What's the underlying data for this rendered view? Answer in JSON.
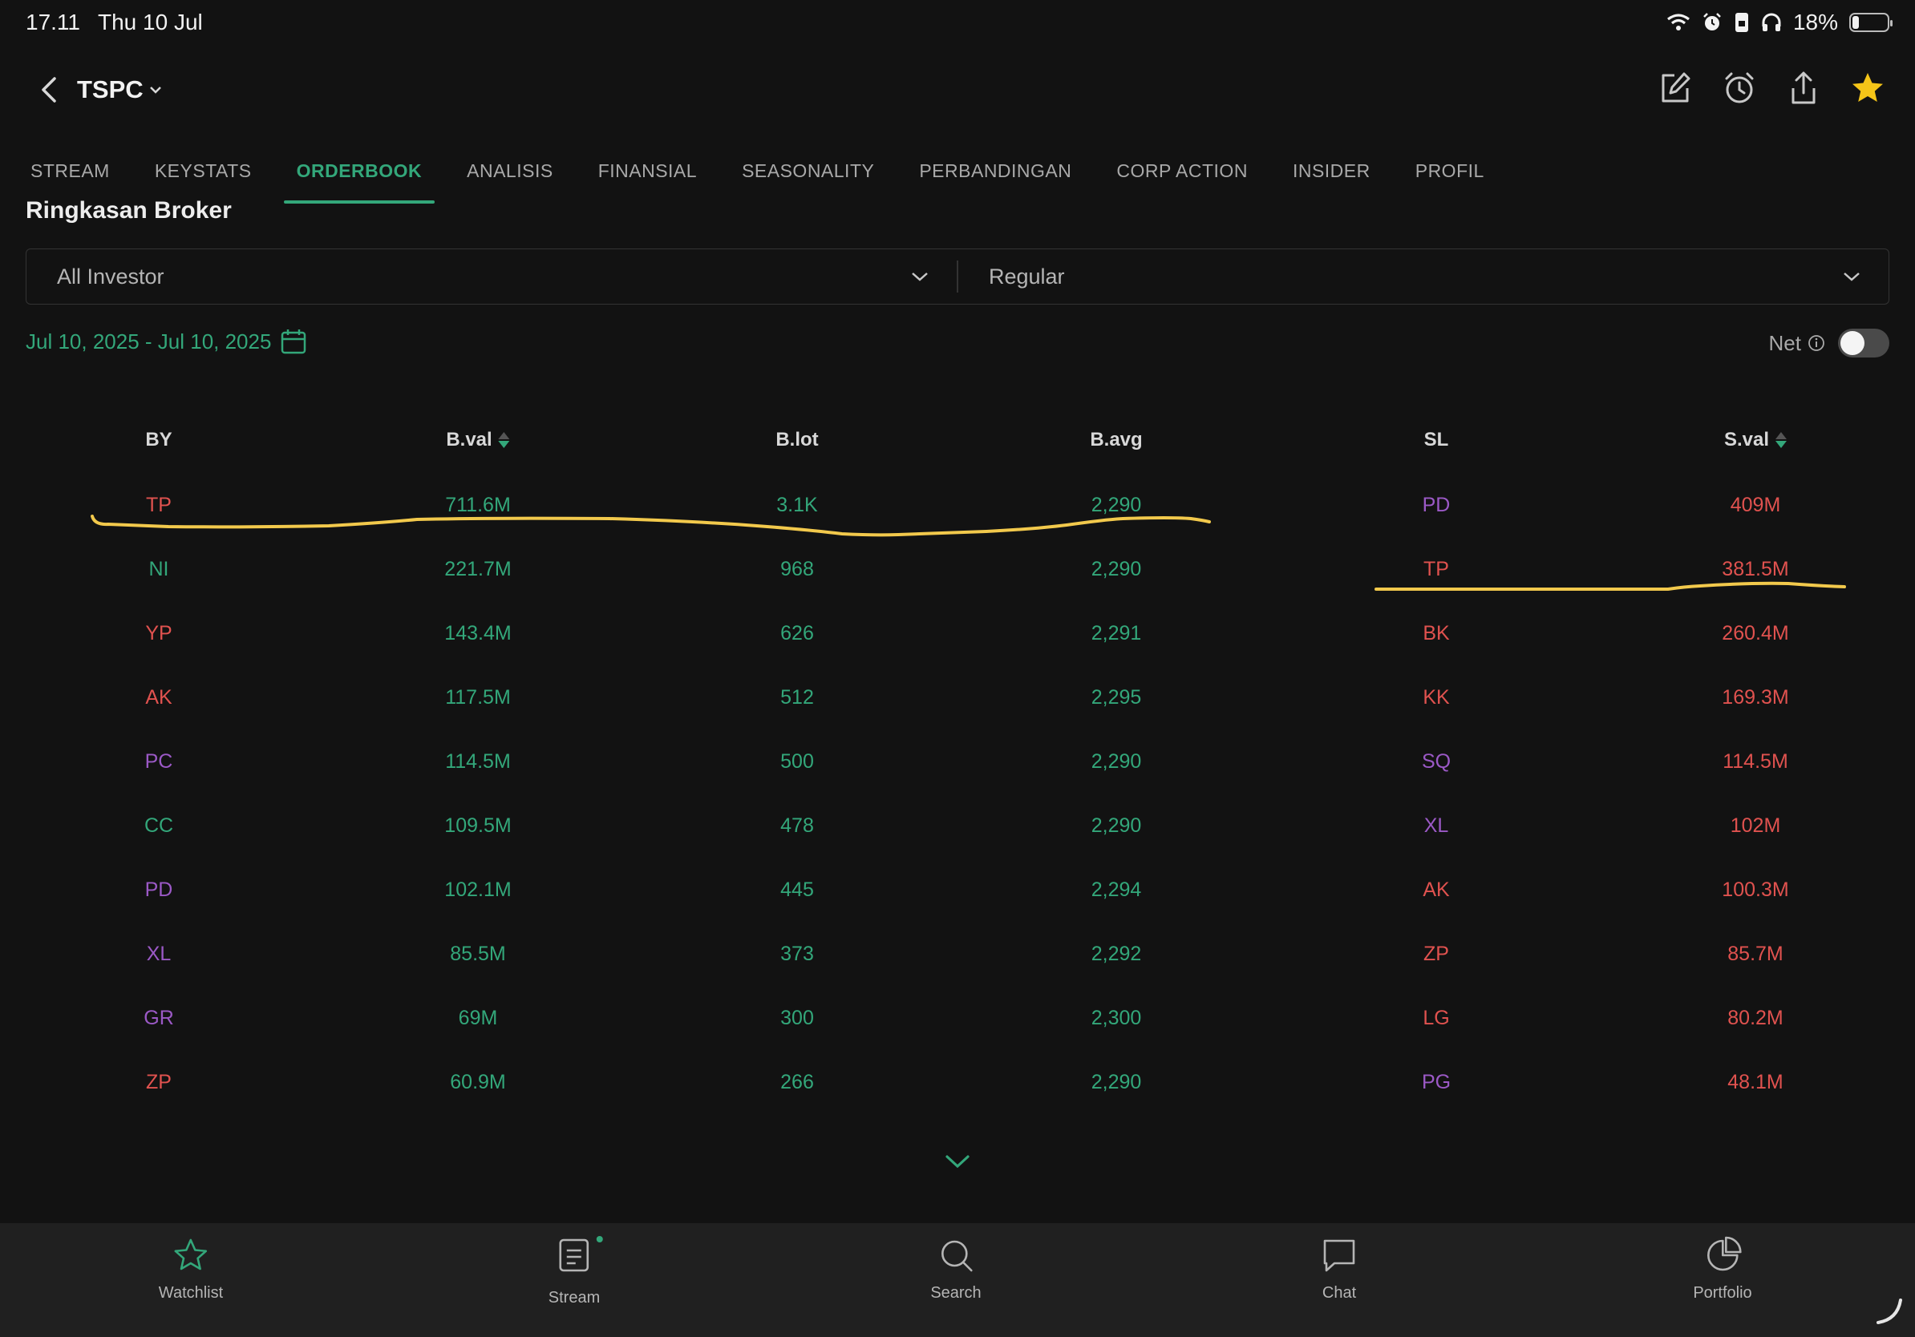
{
  "status_bar": {
    "time": "17.11",
    "date": "Thu 10 Jul",
    "battery": "18%",
    "battery_level": 0.18
  },
  "header": {
    "ticker": "TSPC"
  },
  "tabs": [
    {
      "label": "STREAM",
      "active": false
    },
    {
      "label": "KEYSTATS",
      "active": false
    },
    {
      "label": "ORDERBOOK",
      "active": true
    },
    {
      "label": "ANALISIS",
      "active": false
    },
    {
      "label": "FINANSIAL",
      "active": false
    },
    {
      "label": "SEASONALITY",
      "active": false
    },
    {
      "label": "PERBANDINGAN",
      "active": false
    },
    {
      "label": "CORP ACTION",
      "active": false
    },
    {
      "label": "INSIDER",
      "active": false
    },
    {
      "label": "PROFIL",
      "active": false
    }
  ],
  "section_title": "Ringkasan Broker",
  "filters": {
    "investor": "All Investor",
    "market": "Regular"
  },
  "date_range": "Jul 10, 2025 - Jul 10, 2025",
  "net": {
    "label": "Net",
    "enabled": false
  },
  "table": {
    "headers": {
      "by": "BY",
      "bval": "B.val",
      "blot": "B.lot",
      "bavg": "B.avg",
      "sl": "SL",
      "sval": "S.val"
    },
    "rows": [
      {
        "by": "TP",
        "by_color": "red",
        "bval": "711.6M",
        "blot": "3.1K",
        "bavg": "2,290",
        "sl": "PD",
        "sl_color": "purple",
        "sval": "409M"
      },
      {
        "by": "NI",
        "by_color": "green",
        "bval": "221.7M",
        "blot": "968",
        "bavg": "2,290",
        "sl": "TP",
        "sl_color": "red",
        "sval": "381.5M"
      },
      {
        "by": "YP",
        "by_color": "red",
        "bval": "143.4M",
        "blot": "626",
        "bavg": "2,291",
        "sl": "BK",
        "sl_color": "red",
        "sval": "260.4M"
      },
      {
        "by": "AK",
        "by_color": "red",
        "bval": "117.5M",
        "blot": "512",
        "bavg": "2,295",
        "sl": "KK",
        "sl_color": "red",
        "sval": "169.3M"
      },
      {
        "by": "PC",
        "by_color": "purple",
        "bval": "114.5M",
        "blot": "500",
        "bavg": "2,290",
        "sl": "SQ",
        "sl_color": "purple",
        "sval": "114.5M"
      },
      {
        "by": "CC",
        "by_color": "green",
        "bval": "109.5M",
        "blot": "478",
        "bavg": "2,290",
        "sl": "XL",
        "sl_color": "purple",
        "sval": "102M"
      },
      {
        "by": "PD",
        "by_color": "purple",
        "bval": "102.1M",
        "blot": "445",
        "bavg": "2,294",
        "sl": "AK",
        "sl_color": "red",
        "sval": "100.3M"
      },
      {
        "by": "XL",
        "by_color": "purple",
        "bval": "85.5M",
        "blot": "373",
        "bavg": "2,292",
        "sl": "ZP",
        "sl_color": "red",
        "sval": "85.7M"
      },
      {
        "by": "GR",
        "by_color": "purple",
        "bval": "69M",
        "blot": "300",
        "bavg": "2,300",
        "sl": "LG",
        "sl_color": "red",
        "sval": "80.2M"
      },
      {
        "by": "ZP",
        "by_color": "red",
        "bval": "60.9M",
        "blot": "266",
        "bavg": "2,290",
        "sl": "PG",
        "sl_color": "purple",
        "sval": "48.1M"
      }
    ]
  },
  "bottom_nav": [
    {
      "label": "Watchlist",
      "icon": "star-icon",
      "active": true
    },
    {
      "label": "Stream",
      "icon": "stream-icon",
      "active": false
    },
    {
      "label": "Search",
      "icon": "search-icon",
      "active": false
    },
    {
      "label": "Chat",
      "icon": "chat-icon",
      "active": false
    },
    {
      "label": "Portfolio",
      "icon": "pie-chart-icon",
      "active": false
    }
  ],
  "colors": {
    "accent": "#33a77a",
    "buy": "#33a77a",
    "sell": "#e0524f",
    "foreign": "#9b59c6",
    "highlight": "#f2c94c",
    "star": "#f5c518"
  }
}
